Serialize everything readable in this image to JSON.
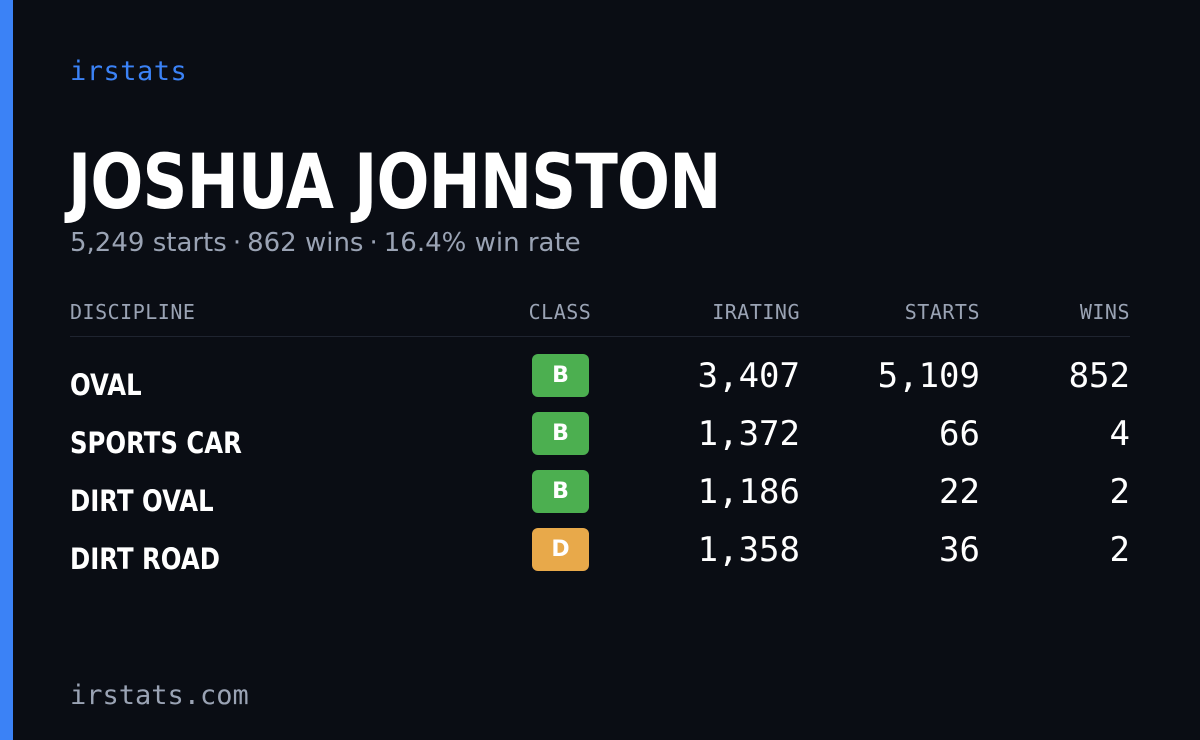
{
  "brand": "irstats",
  "driver": {
    "name": "JOSHUA JOHNSTON",
    "starts": "5,249 starts",
    "wins": "862 wins",
    "win_rate": "16.4% win rate",
    "separator": "·"
  },
  "table": {
    "headers": {
      "discipline": "DISCIPLINE",
      "class": "CLASS",
      "irating": "IRATING",
      "starts": "STARTS",
      "wins": "WINS"
    },
    "rows": [
      {
        "discipline": "OVAL",
        "class": "B",
        "class_color": "#4caf50",
        "irating": "3,407",
        "starts": "5,109",
        "wins": "852"
      },
      {
        "discipline": "SPORTS CAR",
        "class": "B",
        "class_color": "#4caf50",
        "irating": "1,372",
        "starts": "66",
        "wins": "4"
      },
      {
        "discipline": "DIRT OVAL",
        "class": "B",
        "class_color": "#4caf50",
        "irating": "1,186",
        "starts": "22",
        "wins": "2"
      },
      {
        "discipline": "DIRT ROAD",
        "class": "D",
        "class_color": "#e8a94a",
        "irating": "1,358",
        "starts": "36",
        "wins": "2"
      }
    ]
  },
  "footer": "irstats.com",
  "colors": {
    "background": "#0a0d14",
    "accent": "#3b82f6",
    "muted_text": "#9aa3b4"
  }
}
